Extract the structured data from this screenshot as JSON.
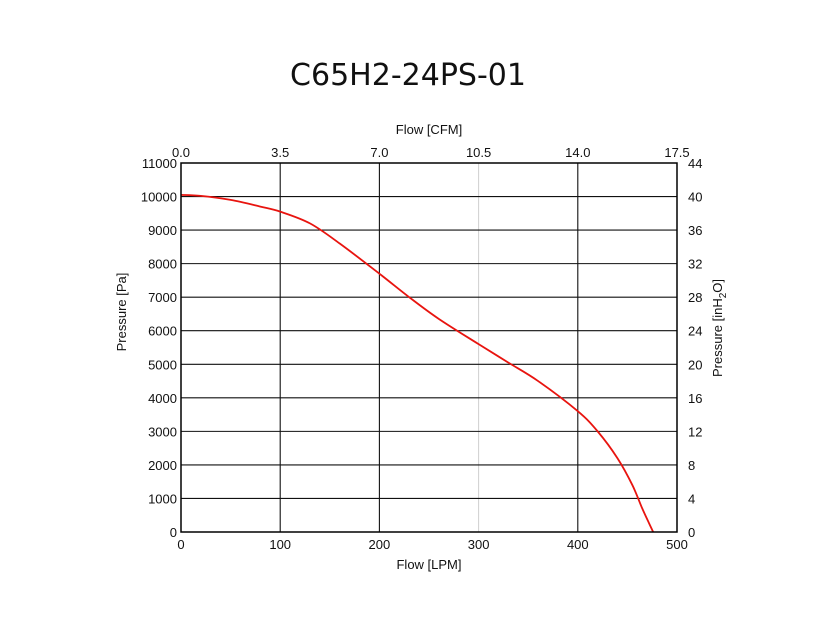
{
  "chart_data": {
    "type": "line",
    "title": "C65H2-24PS-01",
    "xlabel": "Flow [LPM]",
    "x2label": "Flow [CFM]",
    "ylabel": "Pressure [Pa]",
    "y2label_parts": [
      "Pressure [inH",
      "2",
      "O]"
    ],
    "xlim": [
      0,
      500
    ],
    "ylim": [
      0,
      11000
    ],
    "x2lim": [
      0,
      17.5
    ],
    "y2lim": [
      0,
      44
    ],
    "x_ticks": [
      "0",
      "100",
      "200",
      "300",
      "400",
      "500"
    ],
    "x2_ticks": [
      "0.0",
      "3.5",
      "7.0",
      "10.5",
      "14.0",
      "17.5"
    ],
    "y_ticks": [
      "0",
      "1000",
      "2000",
      "3000",
      "4000",
      "5000",
      "6000",
      "7000",
      "8000",
      "9000",
      "10000",
      "11000"
    ],
    "y2_ticks": [
      "0",
      "4",
      "8",
      "12",
      "16",
      "20",
      "24",
      "28",
      "32",
      "36",
      "40",
      "44"
    ],
    "grid": true,
    "series": [
      {
        "color": "#e8140f",
        "x": [
          0,
          20,
          50,
          80,
          100,
          130,
          160,
          200,
          230,
          260,
          300,
          330,
          360,
          400,
          420,
          440,
          455,
          465,
          472,
          476
        ],
        "y": [
          10050,
          10020,
          9900,
          9700,
          9550,
          9200,
          8600,
          7700,
          7000,
          6350,
          5600,
          5050,
          4500,
          3600,
          3000,
          2200,
          1400,
          700,
          250,
          0
        ]
      }
    ]
  }
}
